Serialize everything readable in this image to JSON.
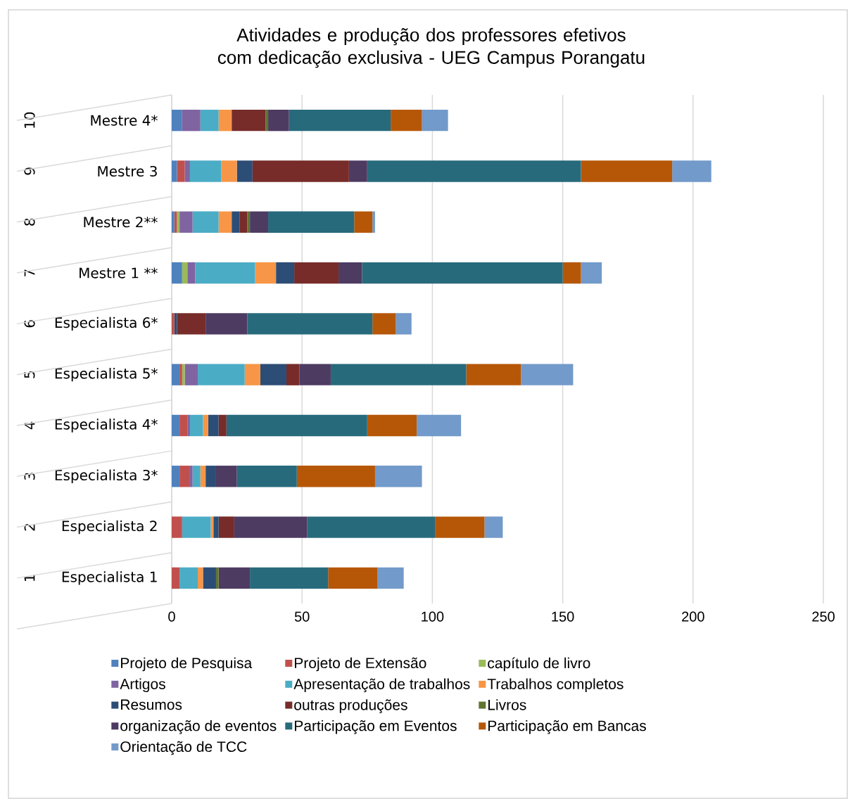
{
  "chart_data": {
    "type": "bar",
    "orientation": "horizontal",
    "stacked": true,
    "title": "Atividades e produção dos professores efetivos com dedicação exclusiva - UEG Campus Porangatu",
    "categories": [
      "Mestre 4*",
      "Mestre 3",
      "Mestre 2**",
      "Mestre 1 **",
      "Especialista 6*",
      "Especialista 5*",
      "Especialista 4*",
      "Especialista 3*",
      "Especialista 2",
      "Especialista 1"
    ],
    "annotations": [
      "10",
      "9",
      "8",
      "7",
      "6",
      "5",
      "4",
      "3",
      "2",
      "1"
    ],
    "xlim": [
      0,
      250
    ],
    "xticks": [
      0,
      50,
      100,
      150,
      200,
      250
    ],
    "grid": "x",
    "legend": "bottom",
    "series": [
      {
        "name": "Projeto de Pesquisa",
        "color": "#4f81bd",
        "values": [
          4,
          2,
          1,
          4,
          0,
          3,
          3,
          3,
          0,
          0
        ]
      },
      {
        "name": "Projeto de Extensão",
        "color": "#c0504d",
        "values": [
          0,
          3,
          1,
          0,
          1,
          1,
          3,
          4,
          4,
          3
        ]
      },
      {
        "name": "capítulo de livro",
        "color": "#9bbb59",
        "values": [
          0,
          0,
          1,
          2,
          0,
          1,
          0,
          0,
          0,
          0
        ]
      },
      {
        "name": "Artigos",
        "color": "#8064a2",
        "values": [
          7,
          2,
          5,
          3,
          0,
          5,
          1,
          1,
          0,
          0
        ]
      },
      {
        "name": "Apresentação de trabalhos",
        "color": "#4bacc6",
        "values": [
          7,
          12,
          10,
          23,
          0,
          18,
          5,
          3,
          11,
          7
        ]
      },
      {
        "name": "Trabalhos completos",
        "color": "#f79646",
        "values": [
          5,
          6,
          5,
          8,
          0,
          6,
          2,
          2,
          1,
          2
        ]
      },
      {
        "name": "Resumos",
        "color": "#2c4d75",
        "values": [
          0,
          6,
          3,
          7,
          1,
          10,
          4,
          4,
          2,
          5
        ]
      },
      {
        "name": "outras produções",
        "color": "#772c2a",
        "values": [
          13,
          37,
          3,
          17,
          11,
          5,
          3,
          0,
          6,
          0
        ]
      },
      {
        "name": "Livros",
        "color": "#5f7530",
        "values": [
          1,
          0,
          1,
          0,
          0,
          0,
          0,
          0,
          0,
          1
        ]
      },
      {
        "name": "organização de eventos",
        "color": "#4d3b62",
        "values": [
          8,
          7,
          7,
          9,
          16,
          12,
          0,
          8,
          28,
          12
        ]
      },
      {
        "name": "Participação em Eventos",
        "color": "#276a7c",
        "values": [
          39,
          82,
          33,
          77,
          48,
          52,
          54,
          23,
          49,
          30
        ]
      },
      {
        "name": "Participação em Bancas",
        "color": "#b65708",
        "values": [
          12,
          35,
          7,
          7,
          9,
          21,
          19,
          30,
          19,
          19
        ]
      },
      {
        "name": "Orientação de TCC",
        "color": "#729aca",
        "values": [
          10,
          15,
          1,
          8,
          6,
          20,
          17,
          18,
          7,
          10
        ]
      }
    ]
  }
}
